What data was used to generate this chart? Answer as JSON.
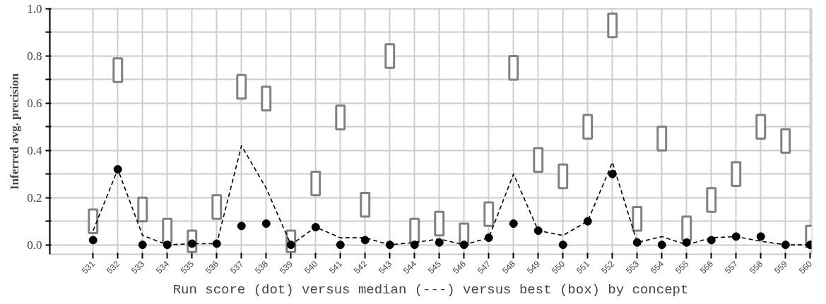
{
  "chart_data": {
    "type": "scatter",
    "xlabel": "Run score (dot) versus median (---) versus best (box) by concept",
    "ylabel": "Inferred avg. precision",
    "categories": [
      "531",
      "532",
      "533",
      "534",
      "535",
      "536",
      "537",
      "538",
      "539",
      "540",
      "541",
      "542",
      "543",
      "544",
      "545",
      "546",
      "547",
      "548",
      "549",
      "550",
      "551",
      "552",
      "553",
      "554",
      "555",
      "556",
      "557",
      "558",
      "559",
      "560"
    ],
    "ylim": [
      -0.04,
      1.0
    ],
    "yticks": [
      {
        "value": 0,
        "label": "0.0"
      },
      {
        "value": 0.1,
        "label": null
      },
      {
        "value": 0.2,
        "label": "0.2"
      },
      {
        "value": 0.3,
        "label": null
      },
      {
        "value": 0.4,
        "label": "0.4"
      },
      {
        "value": 0.5,
        "label": null
      },
      {
        "value": 0.6,
        "label": "0.6"
      },
      {
        "value": 0.7,
        "label": null
      },
      {
        "value": 0.8,
        "label": "0.8"
      },
      {
        "value": 0.9,
        "label": null
      },
      {
        "value": 1,
        "label": "1.0"
      }
    ],
    "grid": true,
    "series": [
      {
        "type": "bar",
        "color": "#808080",
        "base": [
          0.05,
          0.69,
          0.1,
          0.01,
          -0.03,
          0.11,
          0.62,
          0.57,
          -0.03,
          0.21,
          0.49,
          0.12,
          0.75,
          0.01,
          0.04,
          0.0,
          0.08,
          0.7,
          0.31,
          0.24,
          0.45,
          0.88,
          0.06,
          0.4,
          0.02,
          0.14,
          0.25,
          0.45,
          0.39,
          -0.01
        ],
        "values": [
          0.1,
          0.1,
          0.1,
          0.1,
          0.09,
          0.1,
          0.1,
          0.1,
          0.09,
          0.1,
          0.1,
          0.1,
          0.1,
          0.1,
          0.1,
          0.09,
          0.1,
          0.1,
          0.1,
          0.1,
          0.1,
          0.1,
          0.1,
          0.1,
          0.1,
          0.1,
          0.1,
          0.1,
          0.1,
          0.09
        ]
      },
      {
        "type": "line",
        "color": "#000000",
        "line_style": "dashed",
        "marker": "none",
        "values": [
          0.06,
          0.32,
          0.04,
          0.0,
          0.005,
          0.005,
          0.42,
          0.24,
          0.0,
          0.075,
          0.03,
          0.03,
          0.0,
          0.01,
          0.025,
          0.0,
          0.03,
          0.3,
          0.06,
          0.04,
          0.1,
          0.35,
          0.01,
          0.035,
          0.0,
          0.03,
          0.035,
          0.015,
          0.0,
          0.0
        ]
      },
      {
        "color": "#000000",
        "marker": "circle",
        "values": [
          0.02,
          0.32,
          0.0,
          0.0,
          0.005,
          0.005,
          0.08,
          0.09,
          0.0,
          0.075,
          0.0,
          0.02,
          0.0,
          0.0,
          0.01,
          0.0,
          0.03,
          0.09,
          0.06,
          0.0,
          0.1,
          0.3,
          0.01,
          0.0,
          0.01,
          0.02,
          0.035,
          0.035,
          0.0,
          0.0
        ]
      }
    ]
  }
}
